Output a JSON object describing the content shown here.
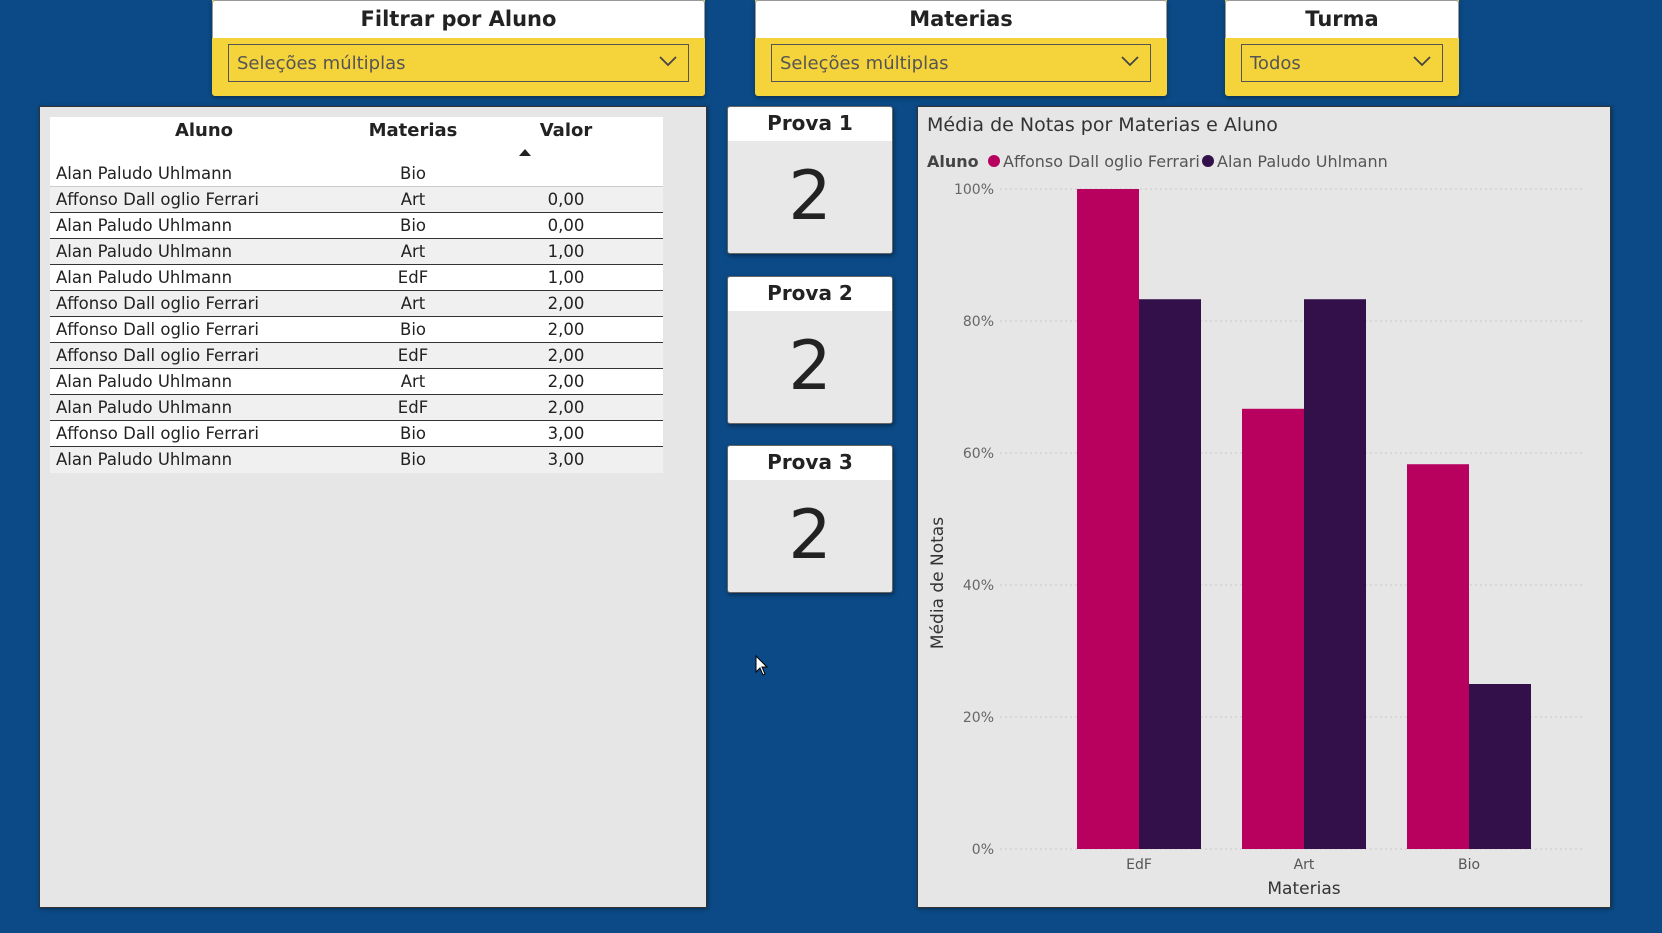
{
  "slicers": {
    "aluno": {
      "title": "Filtrar por Aluno",
      "value": "Seleções múltiplas"
    },
    "materias": {
      "title": "Materias",
      "value": "Seleções múltiplas"
    },
    "turma": {
      "title": "Turma",
      "value": "Todos"
    }
  },
  "table": {
    "headers": {
      "aluno": "Aluno",
      "materias": "Materias",
      "valor": "Valor"
    },
    "sort_indicator": "ascending",
    "rows": [
      {
        "aluno": "Alan Paludo Uhlmann",
        "materias": "Bio",
        "valor": ""
      },
      {
        "aluno": "Affonso Dall oglio Ferrari",
        "materias": "Art",
        "valor": "0,00"
      },
      {
        "aluno": "Alan Paludo Uhlmann",
        "materias": "Bio",
        "valor": "0,00"
      },
      {
        "aluno": "Alan Paludo Uhlmann",
        "materias": "Art",
        "valor": "1,00"
      },
      {
        "aluno": "Alan Paludo Uhlmann",
        "materias": "EdF",
        "valor": "1,00"
      },
      {
        "aluno": "Affonso Dall oglio Ferrari",
        "materias": "Art",
        "valor": "2,00"
      },
      {
        "aluno": "Affonso Dall oglio Ferrari",
        "materias": "Bio",
        "valor": "2,00"
      },
      {
        "aluno": "Affonso Dall oglio Ferrari",
        "materias": "EdF",
        "valor": "2,00"
      },
      {
        "aluno": "Alan Paludo Uhlmann",
        "materias": "Art",
        "valor": "2,00"
      },
      {
        "aluno": "Alan Paludo Uhlmann",
        "materias": "EdF",
        "valor": "2,00"
      },
      {
        "aluno": "Affonso Dall oglio Ferrari",
        "materias": "Bio",
        "valor": "3,00"
      },
      {
        "aluno": "Alan Paludo Uhlmann",
        "materias": "Bio",
        "valor": "3,00"
      }
    ]
  },
  "cards": [
    {
      "title": "Prova 1",
      "value": "2"
    },
    {
      "title": "Prova 2",
      "value": "2"
    },
    {
      "title": "Prova 3",
      "value": "2"
    }
  ],
  "colors": {
    "background": "#0b4a86",
    "slicer": "#f5d43b",
    "series_affonso": "#b8005f",
    "series_alan": "#34104a"
  },
  "chart_data": {
    "type": "bar",
    "title": "Média de Notas por Materias e Aluno",
    "legend_title": "Aluno",
    "legend_position": "top-left",
    "xlabel": "Materias",
    "ylabel": "Média de Notas",
    "categories": [
      "EdF",
      "Art",
      "Bio"
    ],
    "ylim": [
      0,
      100
    ],
    "yticks": [
      "0%",
      "20%",
      "40%",
      "60%",
      "80%",
      "100%"
    ],
    "grid": true,
    "series": [
      {
        "name": "Affonso Dall oglio Ferrari",
        "values": [
          100,
          66.7,
          58.3
        ]
      },
      {
        "name": "Alan Paludo Uhlmann",
        "values": [
          83.3,
          83.3,
          25
        ]
      }
    ]
  }
}
